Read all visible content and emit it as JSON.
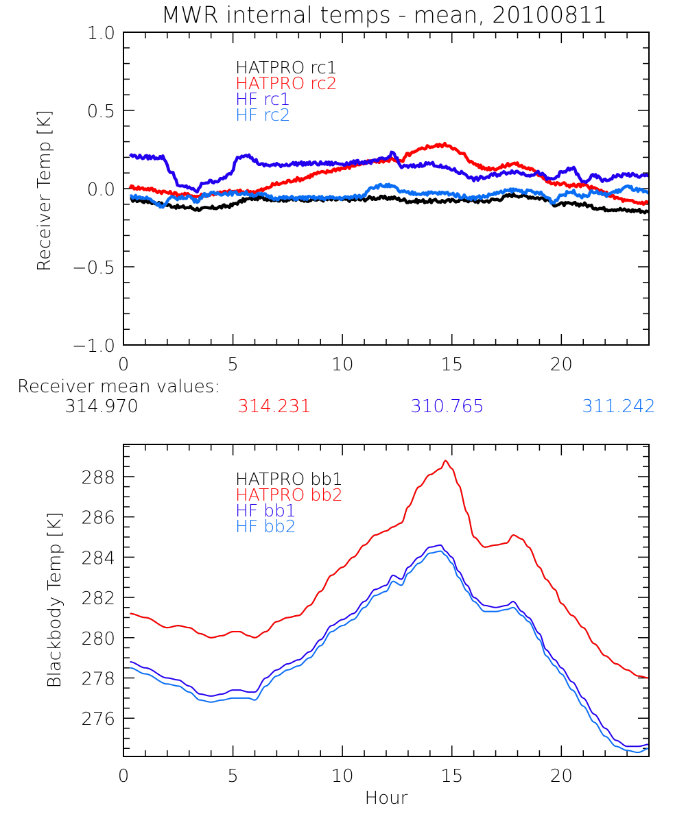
{
  "title": "MWR internal temps - mean, 20100811",
  "colors": {
    "black": "#000000",
    "red": "#ff0000",
    "purple": "#2200ee",
    "blue": "#0a6ef5"
  },
  "mean_values": {
    "label": "Receiver mean values:",
    "values": [
      {
        "text": "314.970",
        "color": "#000000"
      },
      {
        "text": "314.231",
        "color": "#ff0000"
      },
      {
        "text": "310.765",
        "color": "#2200ee"
      },
      {
        "text": "311.242",
        "color": "#0a6ef5"
      }
    ]
  },
  "chart_data": [
    {
      "type": "line",
      "title": "MWR internal temps - mean, 20100811",
      "xlabel": "",
      "ylabel": "Receiver Temp [K]",
      "xlim": [
        0,
        24
      ],
      "ylim": [
        -1.0,
        1.0
      ],
      "xticks": [
        0,
        5,
        10,
        15,
        20
      ],
      "xtick_labels": [
        "0",
        "5",
        "10",
        "15",
        "20"
      ],
      "yticks": [
        -1.0,
        -0.5,
        0.0,
        0.5,
        1.0
      ],
      "ytick_labels": [
        "−1.0",
        "−0.5",
        "0.0",
        "0.5",
        "1.0"
      ],
      "grid": false,
      "legend_position": "top-left",
      "x": [
        0.3,
        1.0,
        1.8,
        2.2,
        2.6,
        3.0,
        3.3,
        3.7,
        4.3,
        4.9,
        5.2,
        5.6,
        6.0,
        6.3,
        7.0,
        8.0,
        9.0,
        10.0,
        10.9,
        11.3,
        12.0,
        12.3,
        12.7,
        13.0,
        14.0,
        14.8,
        15.5,
        16.0,
        16.5,
        17.0,
        17.8,
        18.5,
        19.0,
        19.4,
        19.6,
        20.0,
        20.5,
        21.0,
        21.5,
        22.0,
        22.5,
        23.0,
        23.5,
        24.0
      ],
      "series": [
        {
          "name": "HATPRO rc1",
          "color": "#000000",
          "values": [
            -0.07,
            -0.08,
            -0.1,
            -0.11,
            -0.12,
            -0.12,
            -0.13,
            -0.13,
            -0.12,
            -0.11,
            -0.09,
            -0.07,
            -0.06,
            -0.06,
            -0.07,
            -0.07,
            -0.07,
            -0.07,
            -0.07,
            -0.06,
            -0.06,
            -0.06,
            -0.07,
            -0.08,
            -0.08,
            -0.08,
            -0.07,
            -0.08,
            -0.08,
            -0.07,
            -0.04,
            -0.05,
            -0.06,
            -0.07,
            -0.1,
            -0.1,
            -0.1,
            -0.1,
            -0.12,
            -0.13,
            -0.13,
            -0.14,
            -0.14,
            -0.15
          ]
        },
        {
          "name": "HATPRO rc2",
          "color": "#ff0000",
          "values": [
            0.01,
            0.0,
            -0.02,
            -0.03,
            -0.04,
            -0.04,
            -0.05,
            -0.04,
            -0.03,
            -0.02,
            -0.02,
            -0.02,
            -0.02,
            -0.01,
            0.03,
            0.06,
            0.1,
            0.13,
            0.16,
            0.17,
            0.18,
            0.19,
            0.17,
            0.22,
            0.27,
            0.28,
            0.22,
            0.16,
            0.13,
            0.13,
            0.16,
            0.13,
            0.09,
            0.05,
            0.03,
            0.03,
            0.02,
            0.02,
            0.0,
            -0.03,
            -0.06,
            -0.08,
            -0.09,
            -0.09
          ]
        },
        {
          "name": "HF rc1",
          "color": "#2200ee",
          "values": [
            0.21,
            0.2,
            0.2,
            0.1,
            0.01,
            0.01,
            -0.02,
            0.04,
            0.05,
            0.09,
            0.2,
            0.22,
            0.18,
            0.15,
            0.15,
            0.16,
            0.16,
            0.16,
            0.17,
            0.17,
            0.19,
            0.23,
            0.14,
            0.14,
            0.16,
            0.13,
            0.1,
            0.06,
            0.07,
            0.09,
            0.11,
            0.09,
            0.1,
            0.06,
            0.06,
            0.1,
            0.13,
            0.04,
            0.08,
            0.05,
            0.08,
            0.09,
            0.08,
            0.08
          ]
        },
        {
          "name": "HF rc2",
          "color": "#0a6ef5",
          "values": [
            -0.05,
            -0.06,
            -0.11,
            -0.06,
            -0.06,
            -0.05,
            -0.08,
            -0.04,
            -0.03,
            -0.03,
            -0.03,
            -0.03,
            -0.04,
            -0.04,
            -0.06,
            -0.06,
            -0.06,
            -0.06,
            -0.05,
            0.01,
            0.02,
            0.01,
            -0.02,
            -0.03,
            -0.03,
            -0.03,
            -0.05,
            -0.06,
            -0.05,
            -0.03,
            -0.01,
            -0.02,
            -0.03,
            -0.06,
            -0.09,
            -0.04,
            -0.02,
            -0.05,
            -0.02,
            -0.04,
            -0.02,
            0.01,
            -0.01,
            -0.03
          ]
        }
      ],
      "legend": [
        "HATPRO rc1",
        "HATPRO rc2",
        "HF rc1",
        "HF rc2"
      ]
    },
    {
      "type": "line",
      "title": "",
      "xlabel": "Hour",
      "ylabel": "Blackbody Temp [K]",
      "xlim": [
        0,
        24
      ],
      "ylim": [
        274.1,
        289.6
      ],
      "xticks": [
        0,
        5,
        10,
        15,
        20
      ],
      "xtick_labels": [
        "0",
        "5",
        "10",
        "15",
        "20"
      ],
      "yticks": [
        276,
        278,
        280,
        282,
        284,
        286,
        288
      ],
      "ytick_labels": [
        "276",
        "278",
        "280",
        "282",
        "284",
        "286",
        "288"
      ],
      "grid": false,
      "legend_position": "top-left",
      "x": [
        0.3,
        1.0,
        2.0,
        2.5,
        3.0,
        3.5,
        4.0,
        4.5,
        5.0,
        5.3,
        5.7,
        6.0,
        6.5,
        7.0,
        7.5,
        8.0,
        8.5,
        9.0,
        9.5,
        10.0,
        10.5,
        11.0,
        11.5,
        12.0,
        12.3,
        12.7,
        13.0,
        13.5,
        14.0,
        14.5,
        14.7,
        15.0,
        15.3,
        15.7,
        16.0,
        16.5,
        17.0,
        17.5,
        17.8,
        18.2,
        18.5,
        19.0,
        19.3,
        19.7,
        20.0,
        20.5,
        21.0,
        21.5,
        22.0,
        22.5,
        23.0,
        23.5,
        24.0
      ],
      "series": [
        {
          "name": "HATPRO bb1",
          "color": "#000000",
          "values": [
            281.2,
            281.0,
            280.5,
            280.6,
            280.5,
            280.2,
            280.0,
            280.1,
            280.3,
            280.3,
            280.1,
            280.0,
            280.3,
            280.8,
            281.0,
            281.1,
            281.6,
            282.3,
            283.1,
            283.5,
            284.0,
            284.6,
            285.1,
            285.3,
            285.5,
            285.7,
            286.5,
            287.5,
            288.1,
            288.4,
            288.8,
            288.4,
            287.6,
            286.2,
            285.0,
            284.5,
            284.6,
            284.7,
            285.1,
            284.9,
            284.5,
            283.5,
            282.9,
            282.4,
            281.7,
            281.1,
            280.5,
            279.7,
            279.1,
            278.7,
            278.4,
            278.1,
            278.0
          ]
        },
        {
          "name": "HATPRO bb2",
          "color": "#ff0000",
          "values": [
            281.2,
            281.0,
            280.5,
            280.6,
            280.5,
            280.2,
            280.0,
            280.1,
            280.3,
            280.3,
            280.1,
            280.0,
            280.3,
            280.8,
            281.0,
            281.1,
            281.6,
            282.3,
            283.1,
            283.5,
            284.0,
            284.6,
            285.1,
            285.3,
            285.5,
            285.7,
            286.5,
            287.5,
            288.1,
            288.4,
            288.8,
            288.4,
            287.6,
            286.2,
            285.0,
            284.5,
            284.6,
            284.7,
            285.1,
            284.9,
            284.5,
            283.5,
            282.9,
            282.4,
            281.7,
            281.1,
            280.5,
            279.7,
            279.1,
            278.7,
            278.4,
            278.1,
            278.0
          ]
        },
        {
          "name": "HF bb1",
          "color": "#2200ee",
          "values": [
            278.8,
            278.5,
            278.0,
            277.9,
            277.6,
            277.2,
            277.1,
            277.2,
            277.4,
            277.4,
            277.3,
            277.3,
            278.0,
            278.4,
            278.7,
            278.9,
            279.3,
            279.9,
            280.6,
            280.9,
            281.2,
            281.8,
            282.4,
            282.6,
            283.1,
            282.9,
            283.5,
            284.0,
            284.5,
            284.6,
            284.3,
            284.0,
            283.3,
            282.6,
            282.0,
            281.6,
            281.5,
            281.6,
            281.8,
            281.3,
            281.0,
            280.2,
            279.4,
            278.9,
            278.5,
            277.8,
            277.0,
            276.2,
            275.5,
            274.9,
            274.6,
            274.6,
            274.7
          ]
        },
        {
          "name": "HF bb2",
          "color": "#0a6ef5",
          "values": [
            278.5,
            278.2,
            277.7,
            277.6,
            277.3,
            276.9,
            276.8,
            276.9,
            277.0,
            277.0,
            277.0,
            276.9,
            277.6,
            278.1,
            278.4,
            278.6,
            279.0,
            279.6,
            280.3,
            280.6,
            280.9,
            281.5,
            282.1,
            282.3,
            282.8,
            282.6,
            283.2,
            283.7,
            284.2,
            284.3,
            284.1,
            283.7,
            283.0,
            282.3,
            281.8,
            281.3,
            281.3,
            281.4,
            281.5,
            281.1,
            280.8,
            279.9,
            279.1,
            278.6,
            278.2,
            277.4,
            276.6,
            275.8,
            275.1,
            274.6,
            274.4,
            274.3,
            274.5
          ]
        }
      ],
      "legend": [
        "HATPRO bb1",
        "HATPRO bb2",
        "HF bb1",
        "HF bb2"
      ]
    }
  ]
}
